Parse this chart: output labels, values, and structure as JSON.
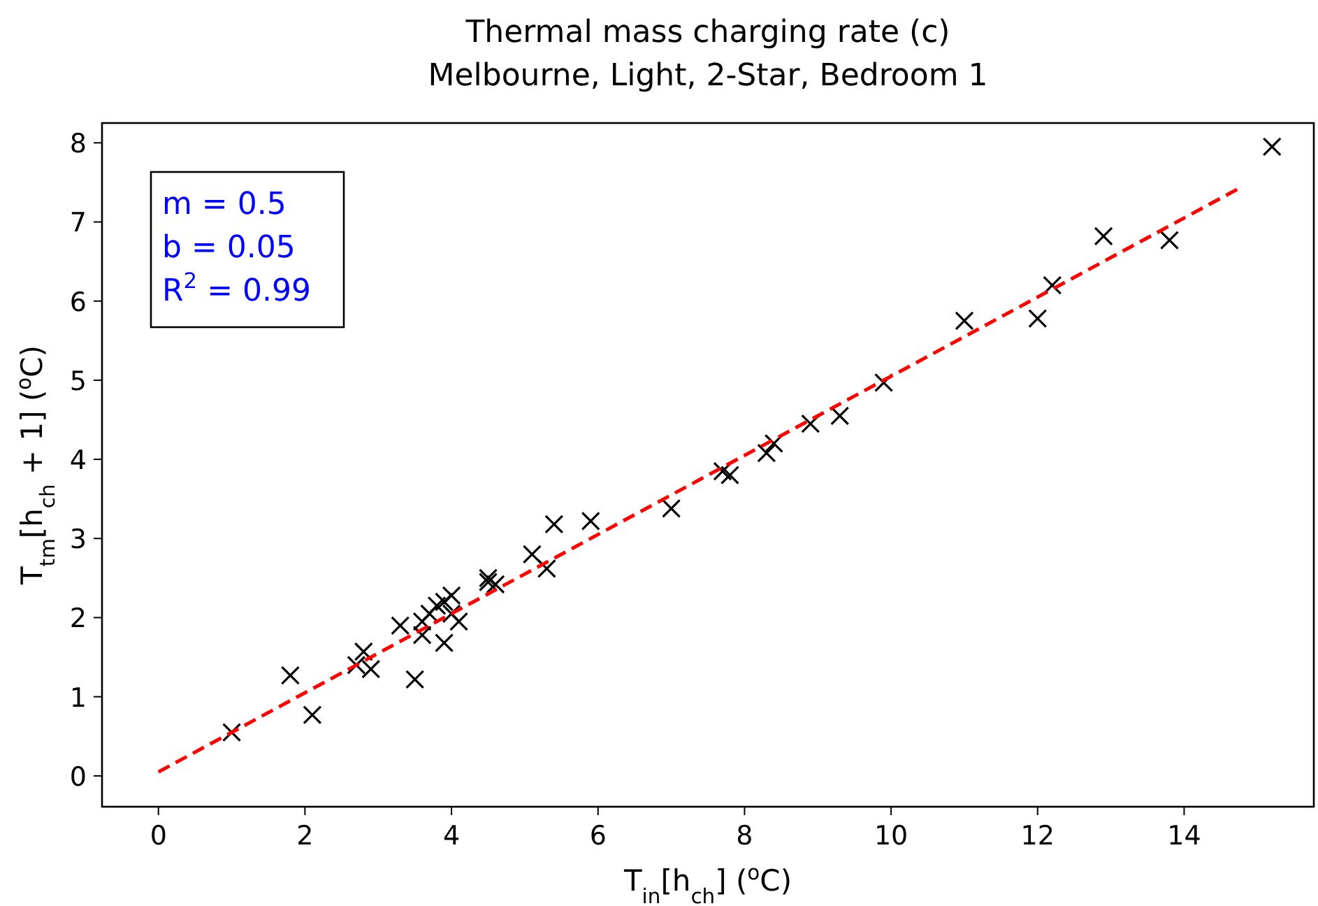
{
  "chart_data": {
    "type": "scatter",
    "title": "Thermal mass charging rate (c)\nMelbourne, Light, 2-Star, Bedroom 1",
    "xlabel": "T$_{in}$[h$_{ch}$] ($^{o}$C)",
    "ylabel": "T$_{tm}$[h$_{ch}$ + 1] ($^{o}$C)",
    "xlim": [
      -0.77,
      15.77
    ],
    "ylim": [
      -0.39,
      8.25
    ],
    "xticks": [
      0,
      2,
      4,
      6,
      8,
      10,
      12,
      14
    ],
    "yticks": [
      0,
      1,
      2,
      3,
      4,
      5,
      6,
      7,
      8
    ],
    "annotations": [
      "m =  0.5",
      "b =  0.05",
      "R$^{2}$ =  0.99"
    ],
    "series": [
      {
        "type": "scatter",
        "color": "#000000",
        "marker": "cross",
        "x": [
          1.0,
          1.8,
          2.1,
          2.7,
          2.8,
          2.9,
          3.3,
          3.5,
          3.6,
          3.6,
          3.7,
          3.8,
          3.9,
          3.9,
          4.0,
          4.0,
          4.1,
          4.5,
          4.5,
          4.6,
          5.1,
          5.3,
          5.4,
          5.9,
          7.0,
          7.7,
          7.8,
          8.3,
          8.4,
          8.9,
          9.3,
          9.9,
          11.0,
          12.0,
          12.2,
          12.9,
          13.8,
          15.2
        ],
        "values": [
          0.55,
          1.27,
          0.77,
          1.4,
          1.57,
          1.35,
          1.9,
          1.22,
          1.78,
          1.95,
          2.05,
          2.15,
          1.68,
          2.2,
          2.05,
          2.28,
          1.95,
          2.5,
          2.45,
          2.42,
          2.8,
          2.62,
          3.18,
          3.22,
          3.38,
          3.85,
          3.8,
          4.08,
          4.2,
          4.45,
          4.55,
          4.97,
          5.75,
          5.78,
          6.2,
          6.82,
          6.77,
          7.95
        ]
      },
      {
        "type": "line",
        "color": "#ff0000",
        "line_style": "dashed",
        "marker": "none",
        "x": [
          0,
          14.8
        ],
        "values": [
          0.05,
          7.45
        ]
      }
    ]
  }
}
